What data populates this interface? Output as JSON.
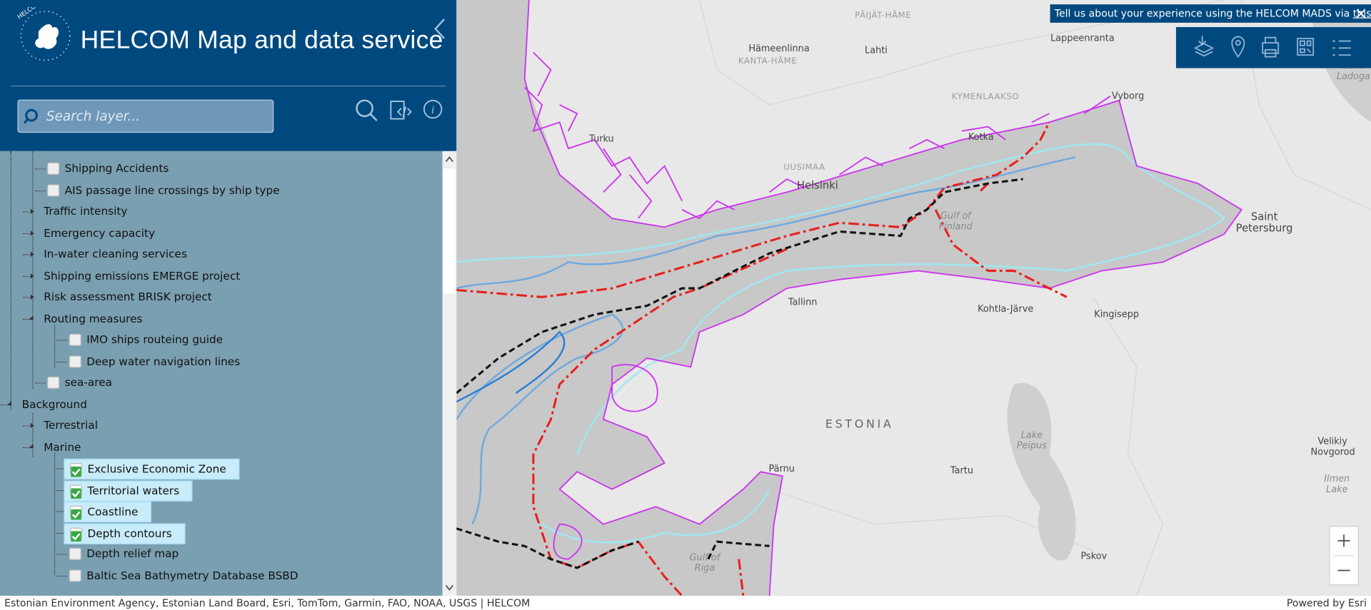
{
  "header": {
    "logo_text": "HELCOM",
    "title": "HELCOM Map and data service",
    "search_placeholder": "Search layer..."
  },
  "tree": {
    "items": [
      {
        "label": "Shipping Accidents",
        "level": 2,
        "toggle": "unchecked"
      },
      {
        "label": "AIS passage line crossings by ship type",
        "level": 2,
        "toggle": "unchecked"
      },
      {
        "label": "Traffic intensity",
        "level": 1,
        "toggle": "collapsed"
      },
      {
        "label": "Emergency capacity",
        "level": 1,
        "toggle": "collapsed"
      },
      {
        "label": "In-water cleaning services",
        "level": 1,
        "toggle": "collapsed"
      },
      {
        "label": "Shipping emissions EMERGE project",
        "level": 1,
        "toggle": "collapsed"
      },
      {
        "label": "Risk assessment BRISK project",
        "level": 1,
        "toggle": "collapsed"
      },
      {
        "label": "Routing measures",
        "level": 1,
        "toggle": "expanded"
      },
      {
        "label": "IMO ships routeing guide",
        "level": 3,
        "toggle": "unchecked"
      },
      {
        "label": "Deep water navigation lines",
        "level": 3,
        "toggle": "unchecked"
      },
      {
        "label": "sea-area",
        "level": 2,
        "toggle": "unchecked"
      },
      {
        "label": "Background",
        "level": 0,
        "toggle": "expanded"
      },
      {
        "label": "Terrestrial",
        "level": 1,
        "toggle": "collapsed"
      },
      {
        "label": "Marine",
        "level": 1,
        "toggle": "expanded"
      },
      {
        "label": "Exclusive Economic Zone",
        "level": 3,
        "toggle": "checked"
      },
      {
        "label": "Territorial waters",
        "level": 3,
        "toggle": "checked"
      },
      {
        "label": "Coastline",
        "level": 3,
        "toggle": "checked"
      },
      {
        "label": "Depth contours",
        "level": 3,
        "toggle": "checked"
      },
      {
        "label": "Depth relief map",
        "level": 3,
        "toggle": "unchecked"
      },
      {
        "label": "Baltic Sea Bathymetry Database BSBD",
        "level": 3,
        "toggle": "unchecked"
      }
    ]
  },
  "map": {
    "survey": {
      "text": "Tell us about your experience using the HELCOM MADS via",
      "link": "this survey"
    },
    "labels": [
      "PÄIJÄT-HÄME",
      "Hämeenlinna",
      "KANTA-HÄME",
      "Lahti",
      "Lappeenranta",
      "Lake Ladoga",
      "KYMENLAAKSO",
      "Vyborg",
      "Turku",
      "Kotka",
      "UUSIMAA",
      "Helsinki",
      "Gulf of Finland",
      "Saint Petersburg",
      "Tallinn",
      "Kohtla-Järve",
      "Kingisepp",
      "ESTONIA",
      "Lake Peipus",
      "Pärnu",
      "Tartu",
      "Velikiy Novgorod",
      "Ilmen Lake",
      "Pskov",
      "Gulf of Riga"
    ]
  },
  "footer": {
    "attribution": "Estonian Environment Agency, Estonian Land Board, Esri, TomTom, Garmin, FAO, NOAA, USGS | HELCOM",
    "powered": "Powered by Esri"
  }
}
